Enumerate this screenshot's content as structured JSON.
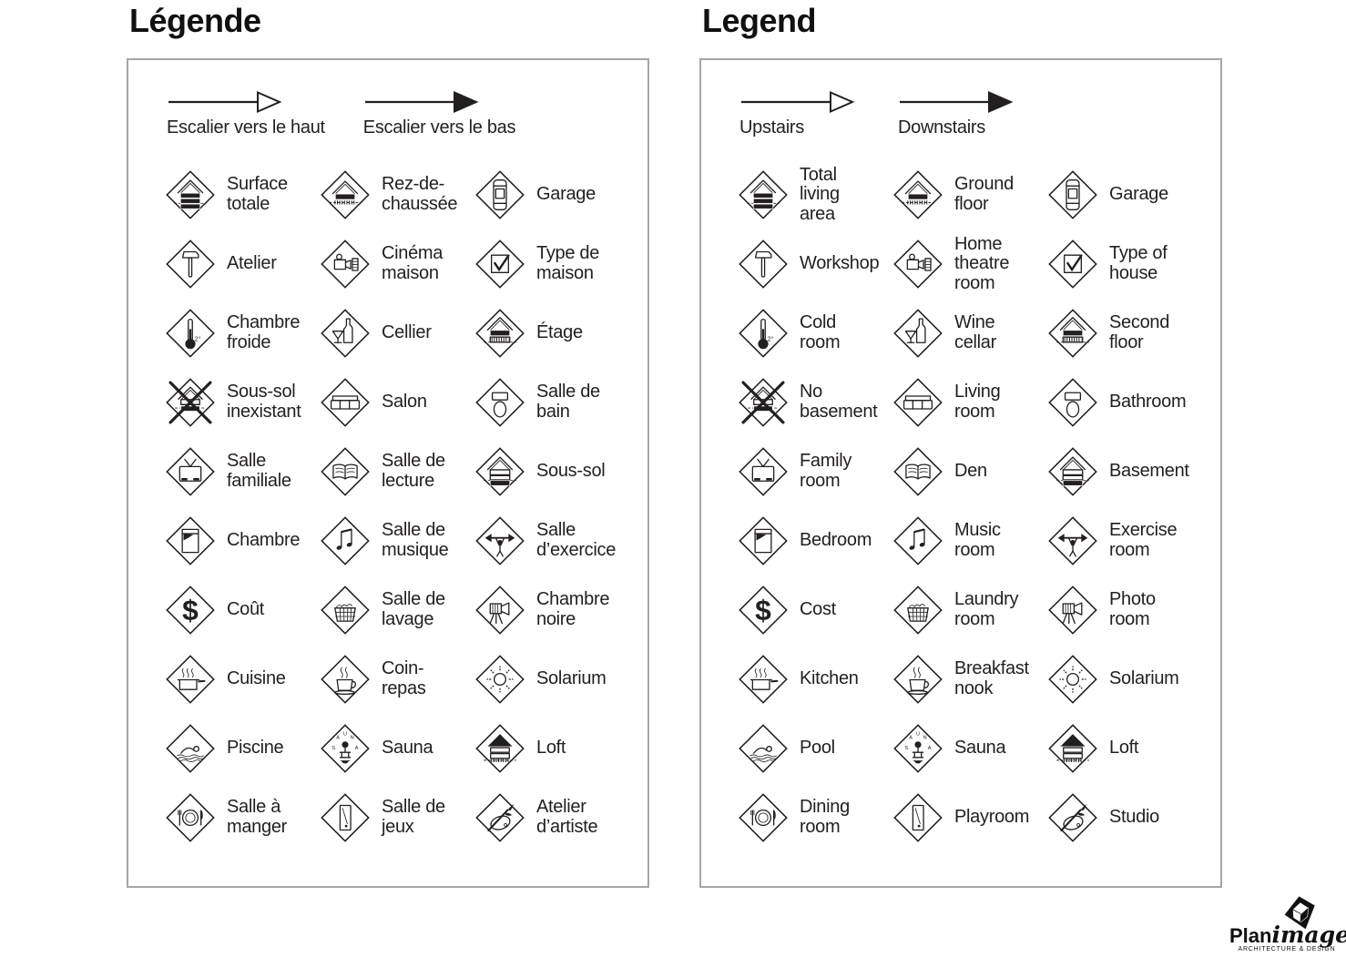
{
  "page": {
    "background": "#ffffff",
    "text_color": "#231f20",
    "panel_border_color": "#a6a6a8"
  },
  "panels": [
    {
      "id": "french",
      "title": "Légende",
      "arrows": [
        {
          "icon": "stairs-up-arrow-icon",
          "label": "Escalier vers le haut"
        },
        {
          "icon": "stairs-down-arrow-icon",
          "label": "Escalier vers le bas"
        }
      ],
      "cells": [
        [
          {
            "icon": "house-total-icon",
            "label": "Surface\ntotale"
          },
          {
            "icon": "house-ground-floor-icon",
            "label": "Rez-de-\nchaussée"
          },
          {
            "icon": "car-icon",
            "label": "Garage"
          }
        ],
        [
          {
            "icon": "hammer-icon",
            "label": "Atelier"
          },
          {
            "icon": "projector-icon",
            "label": "Cinéma\nmaison"
          },
          {
            "icon": "checkbox-icon",
            "label": "Type de\nmaison"
          }
        ],
        [
          {
            "icon": "thermometer-icon",
            "label": "Chambre\nfroide"
          },
          {
            "icon": "wine-icon",
            "label": "Cellier"
          },
          {
            "icon": "house-second-floor-icon",
            "label": "Étage"
          }
        ],
        [
          {
            "icon": "house-no-basement-icon",
            "label": "Sous-sol\ninexistant"
          },
          {
            "icon": "sofa-icon",
            "label": "Salon"
          },
          {
            "icon": "toilet-icon",
            "label": "Salle de\nbain"
          }
        ],
        [
          {
            "icon": "tv-icon",
            "label": "Salle\nfamiliale"
          },
          {
            "icon": "open-book-icon",
            "label": "Salle de\nlecture"
          },
          {
            "icon": "house-basement-icon",
            "label": "Sous-sol"
          }
        ],
        [
          {
            "icon": "bed-icon",
            "label": "Chambre"
          },
          {
            "icon": "music-notes-icon",
            "label": "Salle de\nmusique"
          },
          {
            "icon": "barbell-icon",
            "label": "Salle\nd’exercice"
          }
        ],
        [
          {
            "icon": "dollar-icon",
            "label": "Coût"
          },
          {
            "icon": "laundry-basket-icon",
            "label": "Salle de\nlavage"
          },
          {
            "icon": "camera-tripod-icon",
            "label": "Chambre\nnoire"
          }
        ],
        [
          {
            "icon": "cooking-pot-icon",
            "label": "Cuisine"
          },
          {
            "icon": "coffee-cup-icon",
            "label": "Coin-\nrepas"
          },
          {
            "icon": "sun-icon",
            "label": "Solarium"
          }
        ],
        [
          {
            "icon": "swimmer-icon",
            "label": "Piscine"
          },
          {
            "icon": "sauna-icon",
            "label": "Sauna"
          },
          {
            "icon": "house-loft-icon",
            "label": "Loft"
          }
        ],
        [
          {
            "icon": "plate-cutlery-icon",
            "label": "Salle à\nmanger"
          },
          {
            "icon": "pool-table-icon",
            "label": "Salle de\njeux"
          },
          {
            "icon": "paintbrush-icon",
            "label": "Atelier\nd’artiste"
          }
        ]
      ]
    },
    {
      "id": "english",
      "title": "Legend",
      "arrows": [
        {
          "icon": "stairs-up-arrow-icon",
          "label": "Upstairs"
        },
        {
          "icon": "stairs-down-arrow-icon",
          "label": "Downstairs"
        }
      ],
      "cells": [
        [
          {
            "icon": "house-total-icon",
            "label": "Total\nliving\narea"
          },
          {
            "icon": "house-ground-floor-icon",
            "label": "Ground\nfloor"
          },
          {
            "icon": "car-icon",
            "label": "Garage"
          }
        ],
        [
          {
            "icon": "hammer-icon",
            "label": "Workshop"
          },
          {
            "icon": "projector-icon",
            "label": "Home\ntheatre\nroom"
          },
          {
            "icon": "checkbox-icon",
            "label": "Type of\nhouse"
          }
        ],
        [
          {
            "icon": "thermometer-icon",
            "label": "Cold\nroom"
          },
          {
            "icon": "wine-icon",
            "label": "Wine\ncellar"
          },
          {
            "icon": "house-second-floor-icon",
            "label": "Second\nfloor"
          }
        ],
        [
          {
            "icon": "house-no-basement-icon",
            "label": "No\nbasement"
          },
          {
            "icon": "sofa-icon",
            "label": "Living\nroom"
          },
          {
            "icon": "toilet-icon",
            "label": "Bathroom"
          }
        ],
        [
          {
            "icon": "tv-icon",
            "label": "Family\nroom"
          },
          {
            "icon": "open-book-icon",
            "label": "Den"
          },
          {
            "icon": "house-basement-icon",
            "label": "Basement"
          }
        ],
        [
          {
            "icon": "bed-icon",
            "label": "Bedroom"
          },
          {
            "icon": "music-notes-icon",
            "label": "Music\nroom"
          },
          {
            "icon": "barbell-icon",
            "label": "Exercise\nroom"
          }
        ],
        [
          {
            "icon": "dollar-icon",
            "label": "Cost"
          },
          {
            "icon": "laundry-basket-icon",
            "label": "Laundry\nroom"
          },
          {
            "icon": "camera-tripod-icon",
            "label": "Photo\nroom"
          }
        ],
        [
          {
            "icon": "cooking-pot-icon",
            "label": "Kitchen"
          },
          {
            "icon": "coffee-cup-icon",
            "label": "Breakfast\nnook"
          },
          {
            "icon": "sun-icon",
            "label": "Solarium"
          }
        ],
        [
          {
            "icon": "swimmer-icon",
            "label": "Pool"
          },
          {
            "icon": "sauna-icon",
            "label": "Sauna"
          },
          {
            "icon": "house-loft-icon",
            "label": "Loft"
          }
        ],
        [
          {
            "icon": "plate-cutlery-icon",
            "label": "Dining\nroom"
          },
          {
            "icon": "pool-table-icon",
            "label": "Playroom"
          },
          {
            "icon": "paintbrush-icon",
            "label": "Studio"
          }
        ]
      ]
    }
  ],
  "logo": {
    "brand_primary": "Plan",
    "brand_secondary": "image",
    "tagline": "ARCHITECTURE & DESIGN"
  }
}
